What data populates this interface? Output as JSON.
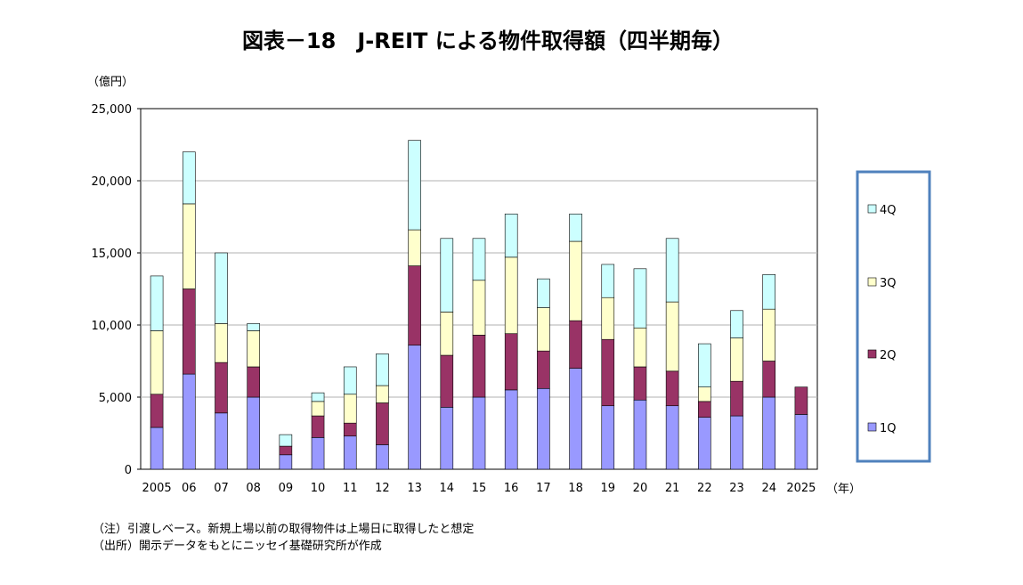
{
  "chart_data": {
    "type": "bar",
    "stacked": true,
    "title": "図表－18　J-REIT による物件取得額（四半期毎）",
    "ylabel": "（億円）",
    "xlabel": "（年）",
    "ylim": [
      0,
      25000
    ],
    "yticks": [
      0,
      5000,
      10000,
      15000,
      20000,
      25000
    ],
    "ytick_labels": [
      "0",
      "5,000",
      "10,000",
      "15,000",
      "20,000",
      "25,000"
    ],
    "grid": true,
    "legend_position": "right",
    "categories": [
      "2005",
      "06",
      "07",
      "08",
      "09",
      "10",
      "11",
      "12",
      "13",
      "14",
      "15",
      "16",
      "17",
      "18",
      "19",
      "20",
      "21",
      "22",
      "23",
      "24",
      "2025"
    ],
    "series": [
      {
        "name": "1Q",
        "color": "#9999ff",
        "values": [
          2900,
          6600,
          3900,
          5000,
          1000,
          2200,
          2300,
          1700,
          8600,
          4300,
          5000,
          5500,
          5600,
          7000,
          4400,
          4800,
          4400,
          3600,
          3700,
          5000,
          3800
        ]
      },
      {
        "name": "2Q",
        "color": "#993366",
        "values": [
          2300,
          5900,
          3500,
          2100,
          600,
          1500,
          900,
          2900,
          5500,
          3600,
          4300,
          3900,
          2600,
          3300,
          4600,
          2300,
          2400,
          1100,
          2400,
          2500,
          1900
        ]
      },
      {
        "name": "3Q",
        "color": "#ffffcc",
        "values": [
          4400,
          5900,
          2700,
          2500,
          0,
          1000,
          2000,
          1200,
          2500,
          3000,
          3800,
          5300,
          3000,
          5500,
          2900,
          2700,
          4800,
          1000,
          3000,
          3600,
          0
        ]
      },
      {
        "name": "4Q",
        "color": "#ccffff",
        "values": [
          3800,
          3600,
          4900,
          500,
          800,
          600,
          1900,
          2200,
          6200,
          5100,
          2900,
          3000,
          2000,
          1900,
          2300,
          4100,
          4400,
          3000,
          1900,
          2400,
          0
        ]
      }
    ]
  },
  "notes": {
    "note": "（注）引渡しベース。新規上場以前の取得物件は上場日に取得したと想定",
    "source": "（出所）開示データをもとにニッセイ基礎研究所が作成"
  }
}
